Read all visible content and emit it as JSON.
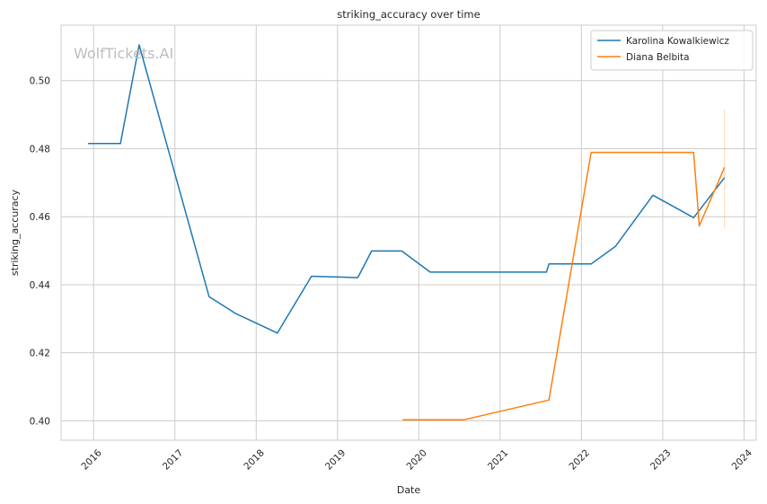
{
  "chart_data": {
    "type": "line",
    "title": "striking_accuracy over time",
    "xlabel": "Date",
    "ylabel": "striking_accuracy",
    "watermark": "WolfTickets.AI",
    "xlim": [
      2015.6,
      2024.15
    ],
    "ylim": [
      0.3943,
      0.5163
    ],
    "x_ticks": [
      "2016",
      "2017",
      "2018",
      "2019",
      "2020",
      "2021",
      "2022",
      "2023",
      "2024"
    ],
    "y_ticks": [
      "0.40",
      "0.42",
      "0.44",
      "0.46",
      "0.48",
      "0.50"
    ],
    "grid": true,
    "legend_position": "top-right",
    "series": [
      {
        "name": "Karolina Kowalkiewicz",
        "color": "#1f77b4",
        "x": [
          2015.93,
          2016.33,
          2016.56,
          2017.42,
          2017.75,
          2018.26,
          2018.68,
          2019.25,
          2019.42,
          2019.79,
          2020.14,
          2021.57,
          2021.6,
          2022.12,
          2022.42,
          2022.88,
          2023.38,
          2023.76
        ],
        "y": [
          0.4815,
          0.4815,
          0.5105,
          0.4365,
          0.4315,
          0.4258,
          0.4425,
          0.4421,
          0.4499,
          0.4499,
          0.4437,
          0.4437,
          0.4461,
          0.4461,
          0.4513,
          0.4663,
          0.4597,
          0.4715
        ]
      },
      {
        "name": "Diana Belbita",
        "color": "#ff7f0e",
        "x": [
          2019.8,
          2020.55,
          2021.6,
          2022.12,
          2023.38,
          2023.45,
          2023.76
        ],
        "y": [
          0.4003,
          0.4003,
          0.4061,
          0.4789,
          0.4789,
          0.4573,
          0.4745
        ]
      }
    ]
  }
}
